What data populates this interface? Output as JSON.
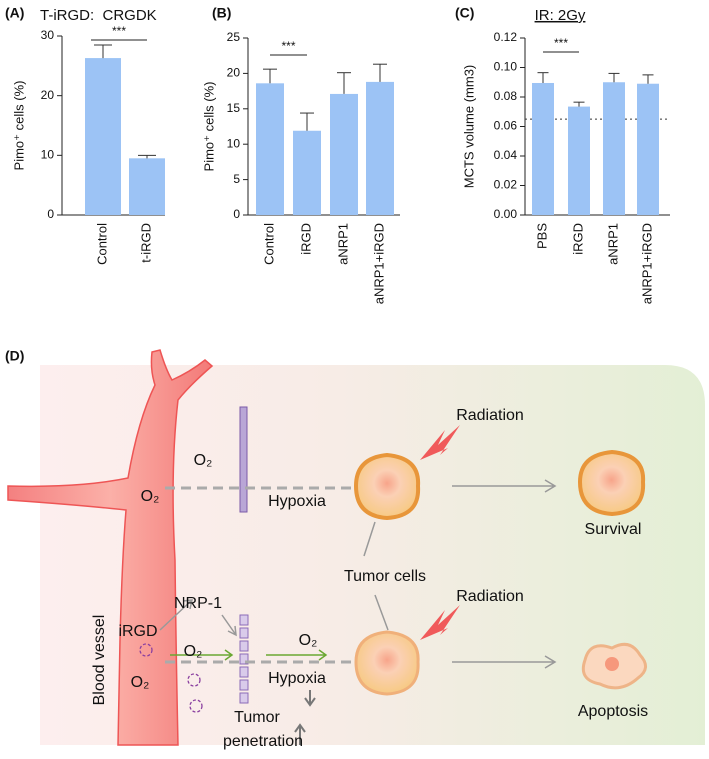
{
  "chart_data": [
    {
      "type": "bar",
      "label": "(A)",
      "title": "T-iRGD:  CRGDK",
      "ylabel": "Pimo⁺ cells (%)",
      "categories": [
        "Control",
        "t-iRGD"
      ],
      "values": [
        26.3,
        9.5
      ],
      "errors": [
        2.2,
        0.5
      ],
      "color": "#9cc3f5",
      "ylim": [
        0,
        30
      ],
      "yticks": [
        0,
        10,
        20,
        30
      ],
      "significance": "***"
    },
    {
      "type": "bar",
      "label": "(B)",
      "ylabel": "Pimo⁺ cells (%)",
      "categories": [
        "Control",
        "iRGD",
        "aNRP1",
        "aNRP1+iRGD"
      ],
      "values": [
        18.6,
        11.9,
        17.1,
        18.8
      ],
      "errors": [
        2.0,
        2.5,
        3.0,
        2.5
      ],
      "color": "#9cc3f5",
      "ylim": [
        0,
        25
      ],
      "yticks": [
        0,
        5,
        10,
        15,
        20,
        25
      ],
      "significance": "***"
    },
    {
      "type": "bar",
      "label": "(C)",
      "title": "IR: 2Gy",
      "ylabel": "MCTS volume (mm3)",
      "categories": [
        "PBS",
        "iRGD",
        "aNRP1",
        "aNRP1+iRGD"
      ],
      "values": [
        0.0895,
        0.0735,
        0.09,
        0.089
      ],
      "errors": [
        0.007,
        0.003,
        0.006,
        0.006
      ],
      "color": "#9cc3f5",
      "ylim": [
        0,
        0.12
      ],
      "yticks": [
        {
          "value": 0,
          "label": "0.00"
        },
        0.02,
        0.04,
        0.06,
        0.08,
        {
          "value": 0.1,
          "label": "0.10"
        },
        0.12
      ],
      "refline": 0.065,
      "significance": "***"
    }
  ],
  "diagram": {
    "label": "(D)",
    "texts": [
      "O₂",
      "O₂",
      "Hypoxia",
      "Radiation",
      "Survival",
      "Tumor cells",
      "NRP-1",
      "iRGD",
      "O₂",
      "O₂",
      "Blood vessel",
      "O₂",
      "Radiation",
      "Hypoxia",
      "Tumor",
      "penetration",
      "Apoptosis"
    ]
  }
}
